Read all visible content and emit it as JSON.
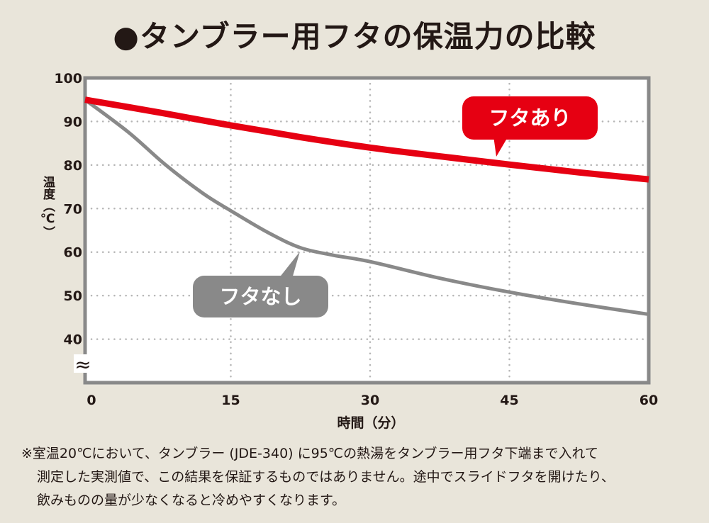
{
  "chart_data": {
    "type": "line",
    "title": "●タンブラー用フタの保温力の比較",
    "xlabel": "時間（分）",
    "ylabel": "温度（℃）",
    "xlim": [
      0,
      60
    ],
    "ylim": [
      30,
      100
    ],
    "x_ticks": [
      "0",
      "15",
      "30",
      "45",
      "60"
    ],
    "y_ticks": [
      "100",
      "90",
      "80",
      "70",
      "60",
      "50",
      "40"
    ],
    "axis_break": "≈",
    "grid": true,
    "series": [
      {
        "name": "フタあり",
        "color": "#e60012",
        "x": [
          0,
          7.5,
          15,
          22.5,
          30,
          37.5,
          45,
          52.5,
          60
        ],
        "y": [
          95,
          92,
          89.1,
          86.4,
          84,
          82,
          80.1,
          78.3,
          76.7
        ]
      },
      {
        "name": "フタなし",
        "color": "#898989",
        "x": [
          0,
          4,
          8,
          12,
          15,
          19,
          22.5,
          26,
          30,
          37.5,
          45,
          52.5,
          60
        ],
        "y": [
          95,
          87.5,
          80,
          73.5,
          69.5,
          64.5,
          61,
          59.3,
          57.8,
          54,
          50.8,
          48.1,
          45.7
        ]
      }
    ]
  },
  "note_lines": [
    "※室温20℃において、タンブラー (JDE-340) に95℃の熱湯をタンブラー用フタ下端まで入れて",
    "測定した実測値で、この結果を保証するものではありません。途中でスライドフタを開けたり、",
    "飲みものの量が少なくなると冷めやすくなります。"
  ]
}
